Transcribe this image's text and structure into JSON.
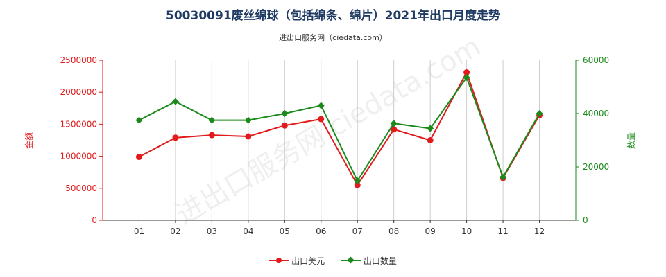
{
  "title": "50030091废丝绵球（包括绵条、绵片）2021年出口月度走势",
  "subtitle": "进出口服务网（ciedata.com）",
  "watermark": "进出口服务网 ciedata.com",
  "colors": {
    "usd": "#e31a1c",
    "qty": "#1a8a1a",
    "grid": "#cccccc",
    "axis": "#333333"
  },
  "chart_data": {
    "type": "line",
    "categories": [
      "01",
      "02",
      "03",
      "04",
      "05",
      "06",
      "07",
      "08",
      "09",
      "10",
      "11",
      "12"
    ],
    "y_left": {
      "label": "金额",
      "ticks": [
        "0",
        "500000",
        "1000000",
        "1500000",
        "2000000",
        "2500000"
      ],
      "ylim": [
        0,
        2500000
      ]
    },
    "y_right": {
      "label": "数量",
      "ticks": [
        "0",
        "20000",
        "40000",
        "60000"
      ],
      "ylim": [
        0,
        60000
      ]
    },
    "series": [
      {
        "name": "出口美元",
        "axis": "left",
        "marker": "circle",
        "values": [
          990000,
          1290000,
          1330000,
          1310000,
          1480000,
          1580000,
          550000,
          1420000,
          1250000,
          2310000,
          660000,
          1640000
        ]
      },
      {
        "name": "出口数量",
        "axis": "right",
        "marker": "diamond",
        "values": [
          37500,
          44500,
          37500,
          37500,
          40000,
          43000,
          14800,
          36300,
          34400,
          53500,
          16200,
          40000
        ]
      }
    ],
    "grid": "vertical",
    "legend_position": "bottom-center"
  }
}
